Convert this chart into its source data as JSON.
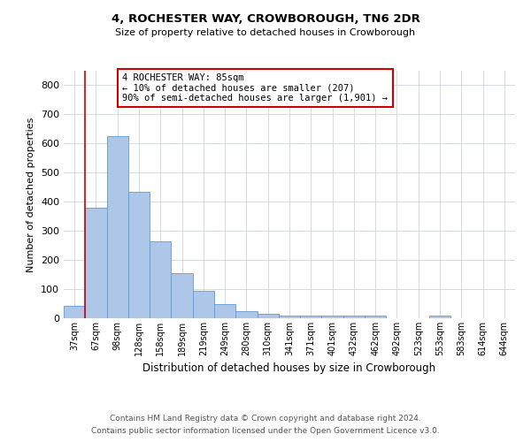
{
  "title1": "4, ROCHESTER WAY, CROWBOROUGH, TN6 2DR",
  "title2": "Size of property relative to detached houses in Crowborough",
  "xlabel": "Distribution of detached houses by size in Crowborough",
  "ylabel": "Number of detached properties",
  "footnote1": "Contains HM Land Registry data © Crown copyright and database right 2024.",
  "footnote2": "Contains public sector information licensed under the Open Government Licence v3.0.",
  "annotation_title": "4 ROCHESTER WAY: 85sqm",
  "annotation_line1": "← 10% of detached houses are smaller (207)",
  "annotation_line2": "90% of semi-detached houses are larger (1,901) →",
  "bar_color": "#aec6e8",
  "bar_edge_color": "#5b9bd5",
  "vline_color": "#cc0000",
  "vline_x_index": 1,
  "categories": [
    "37sqm",
    "67sqm",
    "98sqm",
    "128sqm",
    "158sqm",
    "189sqm",
    "219sqm",
    "249sqm",
    "280sqm",
    "310sqm",
    "341sqm",
    "371sqm",
    "401sqm",
    "432sqm",
    "462sqm",
    "492sqm",
    "523sqm",
    "553sqm",
    "583sqm",
    "614sqm",
    "644sqm"
  ],
  "values": [
    42,
    380,
    625,
    435,
    265,
    155,
    94,
    50,
    25,
    15,
    10,
    10,
    10,
    10,
    8,
    0,
    0,
    8,
    0,
    0,
    0
  ],
  "ylim": [
    0,
    850
  ],
  "yticks": [
    0,
    100,
    200,
    300,
    400,
    500,
    600,
    700,
    800
  ],
  "background_color": "#ffffff",
  "grid_color": "#cdd5e0"
}
